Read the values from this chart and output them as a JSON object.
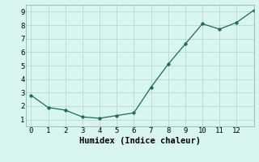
{
  "x": [
    0,
    1,
    2,
    3,
    4,
    5,
    6,
    7,
    8,
    9,
    10,
    11,
    12,
    13
  ],
  "y": [
    2.8,
    1.9,
    1.7,
    1.2,
    1.1,
    1.3,
    1.5,
    3.4,
    5.1,
    6.6,
    8.1,
    7.7,
    8.2,
    9.1
  ],
  "xlim": [
    -0.3,
    13.0
  ],
  "ylim": [
    0.5,
    9.5
  ],
  "xticks": [
    0,
    1,
    2,
    3,
    4,
    5,
    6,
    7,
    8,
    9,
    10,
    11,
    12
  ],
  "yticks": [
    1,
    2,
    3,
    4,
    5,
    6,
    7,
    8,
    9
  ],
  "xlabel": "Humidex (Indice chaleur)",
  "line_color": "#1a6b5a",
  "marker": "o",
  "marker_size": 2.5,
  "bg_color": "#d8f5ef",
  "grid_color": "#b8d8d0",
  "label_fontsize": 7.5,
  "tick_fontsize": 6.5
}
